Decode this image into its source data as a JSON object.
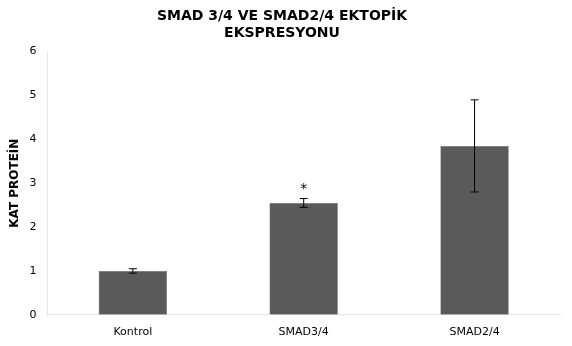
{
  "chart_data": {
    "type": "bar",
    "title": "SMAD 3/4 VE SMAD2/4 EKTOPİK\nEKSPRESYONU",
    "ylabel": "KAT PROTEİN",
    "categories": [
      "Kontrol",
      "SMAD3/4",
      "SMAD2/4"
    ],
    "values": [
      1.0,
      2.55,
      3.85
    ],
    "errors": [
      0.05,
      0.1,
      1.05
    ],
    "color": "#5a5a5a",
    "ylim": [
      0,
      6
    ],
    "yticks": [
      0,
      1,
      2,
      3,
      4,
      5,
      6
    ],
    "grid": false,
    "annotations": [
      {
        "text": "*",
        "category": "SMAD3/4"
      }
    ]
  }
}
